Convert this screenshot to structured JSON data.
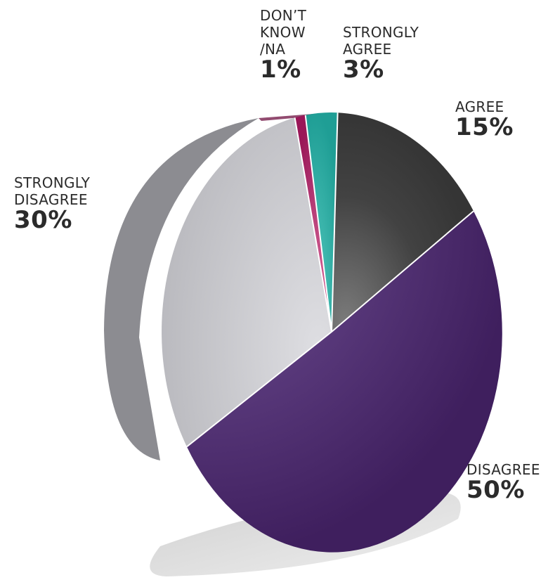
{
  "chart_data": {
    "type": "pie",
    "title": "",
    "slices": [
      {
        "label": "DON’T\nKNOW\n/NA",
        "value": 1,
        "value_label": "1%",
        "color": "#9a1758"
      },
      {
        "label": "STRONGLY\nAGREE",
        "value": 3,
        "value_label": "3%",
        "color": "#2bb3aa"
      },
      {
        "label": "AGREE",
        "value": 15,
        "value_label": "15%",
        "color": "#3c3c3c"
      },
      {
        "label": "DISAGREE",
        "value": 50,
        "value_label": "50%",
        "color": "#4a2a68"
      },
      {
        "label": "STRONGLY\nDISAGREE",
        "value": 30,
        "value_label": "30%",
        "color": "#c4c4c8"
      }
    ],
    "legend": "none"
  }
}
